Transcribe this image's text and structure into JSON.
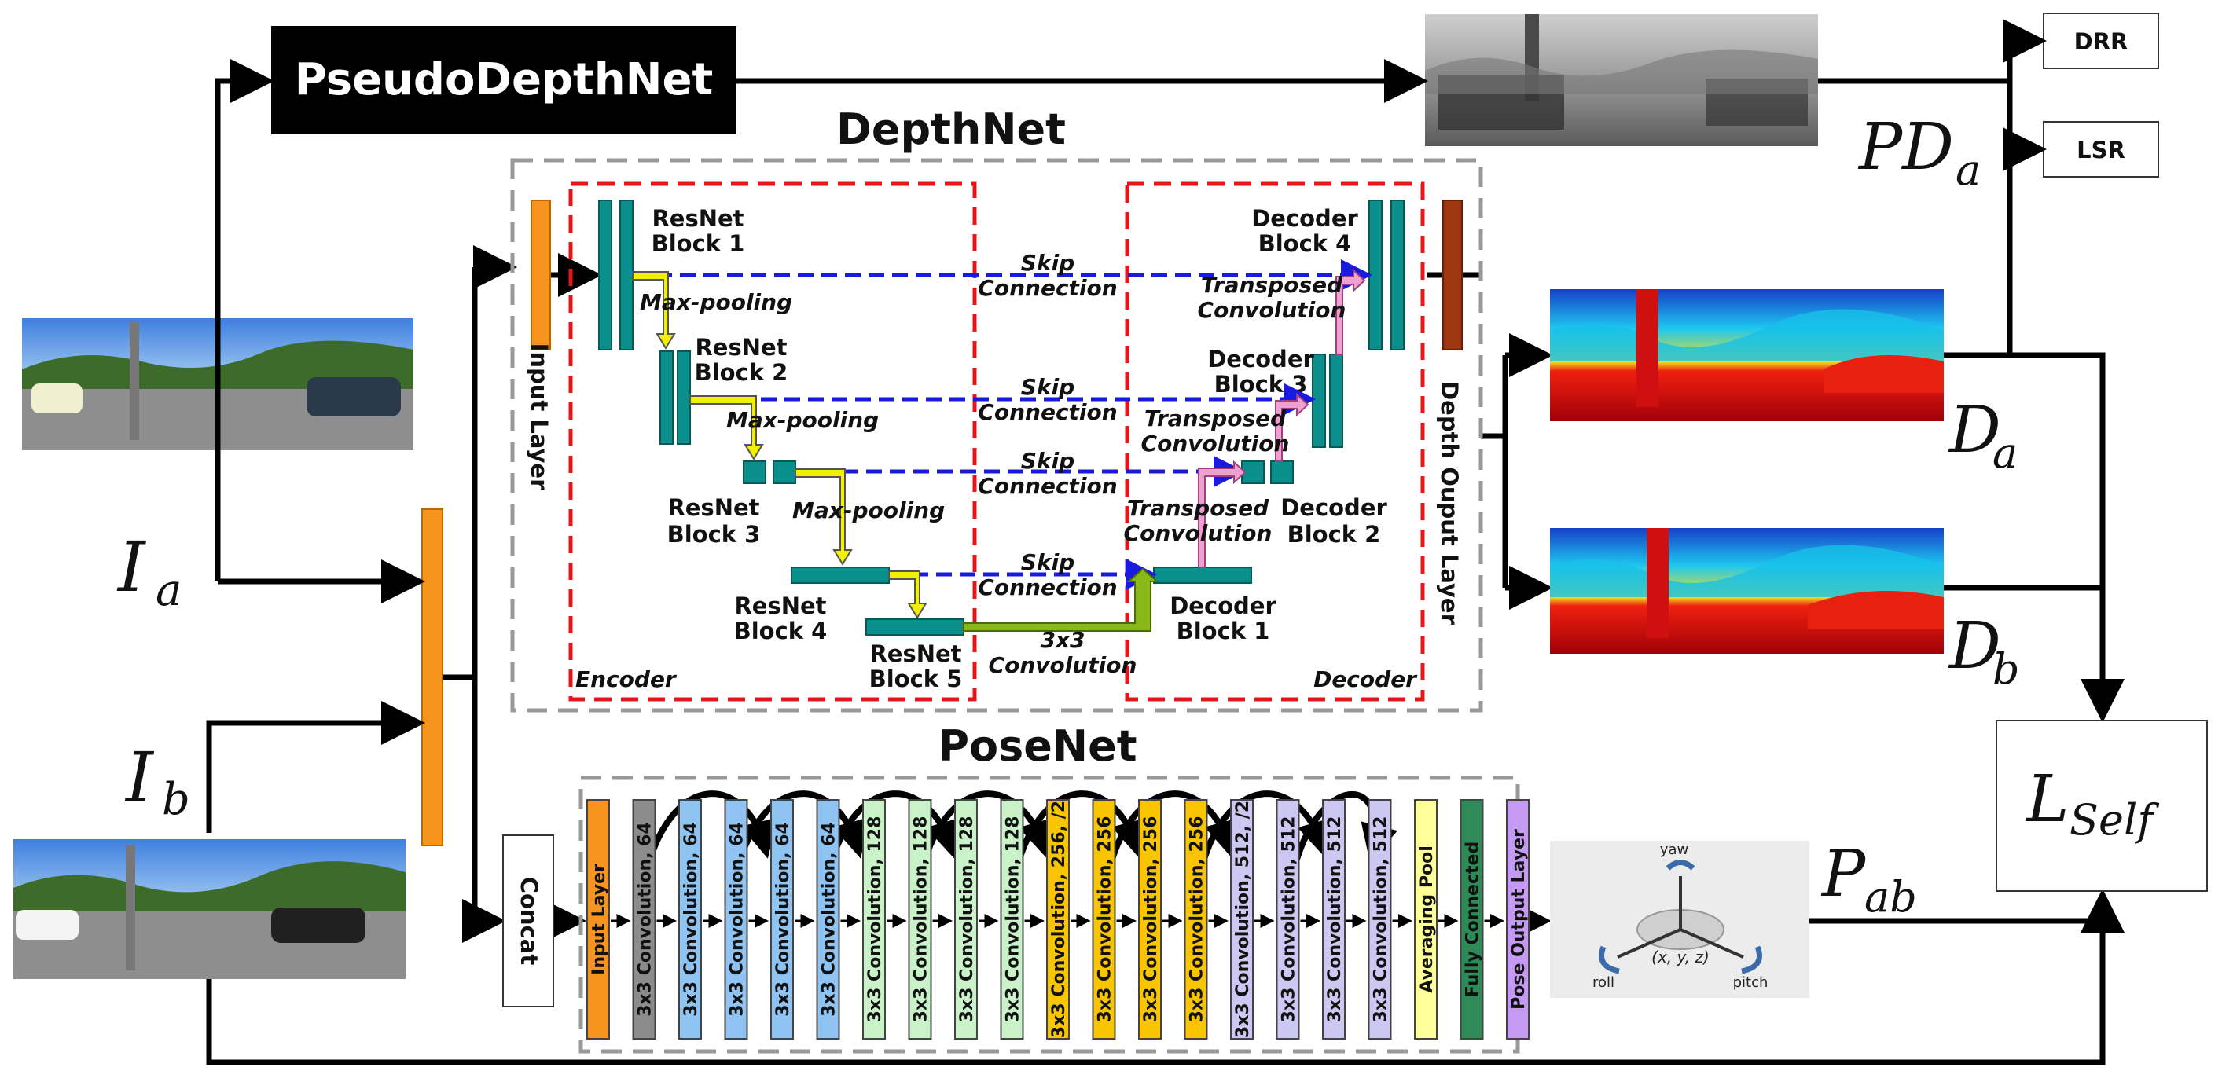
{
  "pseudo_depth_net": "PseudoDepthNet",
  "depthnet": {
    "title": "DepthNet",
    "input_layer": "Input Layer",
    "output_layer": "Depth Ouput Layer",
    "encoder": "Encoder",
    "decoder": "Decoder",
    "resnet_blocks": [
      [
        "ResNet",
        "Block 1"
      ],
      [
        "ResNet",
        "Block 2"
      ],
      [
        "ResNet",
        "Block 3"
      ],
      [
        "ResNet",
        "Block 4"
      ],
      [
        "ResNet",
        "Block 5"
      ]
    ],
    "decoder_blocks": [
      [
        "Decoder",
        "Block 4"
      ],
      [
        "Decoder",
        "Block 3"
      ],
      [
        "Decoder",
        "Block 2"
      ],
      [
        "Decoder",
        "Block 1"
      ]
    ],
    "max_pooling": "Max-pooling",
    "skip": [
      "Skip",
      "Connection"
    ],
    "transposed": [
      "Transposed",
      "Convolution"
    ],
    "conv3x3": [
      "3x3",
      "Convolution"
    ]
  },
  "posenet": {
    "title": "PoseNet",
    "concat": "Concat",
    "layers": [
      {
        "label": "Input Layer",
        "color": "#f7941d"
      },
      {
        "label": "3x3 Convolution, 64",
        "color": "#8c8c8c"
      },
      {
        "label": "3x3 Convolution, 64",
        "color": "#8ec3f2"
      },
      {
        "label": "3x3 Convolution, 64",
        "color": "#8ec3f2"
      },
      {
        "label": "3x3 Convolution, 64",
        "color": "#8ec3f2"
      },
      {
        "label": "3x3 Convolution, 64",
        "color": "#8ec3f2"
      },
      {
        "label": "3x3 Convolution, 128",
        "color": "#c9f2c9"
      },
      {
        "label": "3x3 Convolution, 128",
        "color": "#c9f2c9"
      },
      {
        "label": "3x3 Convolution, 128",
        "color": "#c9f2c9"
      },
      {
        "label": "3x3 Convolution, 128",
        "color": "#c9f2c9"
      },
      {
        "label": "3x3 Convolution, 256, /2",
        "color": "#f9c400"
      },
      {
        "label": "3x3 Convolution, 256",
        "color": "#f9c400"
      },
      {
        "label": "3x3 Convolution, 256",
        "color": "#f9c400"
      },
      {
        "label": "3x3 Convolution, 256",
        "color": "#f9c400"
      },
      {
        "label": "3x3 Convolution, 512, /2",
        "color": "#cdc8f2"
      },
      {
        "label": "3x3 Convolution, 512",
        "color": "#cdc8f2"
      },
      {
        "label": "3x3 Convolution, 512",
        "color": "#cdc8f2"
      },
      {
        "label": "3x3 Convolution, 512",
        "color": "#cdc8f2"
      },
      {
        "label": "Averaging Pool",
        "color": "#ffff99"
      },
      {
        "label": "Fully Connected",
        "color": "#2e8b57"
      },
      {
        "label": "Pose Output Layer",
        "color": "#c59af2"
      }
    ],
    "pose_labels": {
      "yaw": "yaw",
      "roll": "roll",
      "pitch": "pitch",
      "xyz": "(x, y, z)"
    }
  },
  "outputs": {
    "drr": "DRR",
    "lsr": "LSR"
  },
  "math": {
    "ia": "I",
    "ia_sub": "a",
    "ib": "I",
    "ib_sub": "b",
    "pda": "PD",
    "pda_sub": "a",
    "da": "D",
    "da_sub": "a",
    "db": "D",
    "db_sub": "b",
    "pab": "P",
    "pab_sub": "ab",
    "lself": "L",
    "lself_sub": "Self"
  }
}
